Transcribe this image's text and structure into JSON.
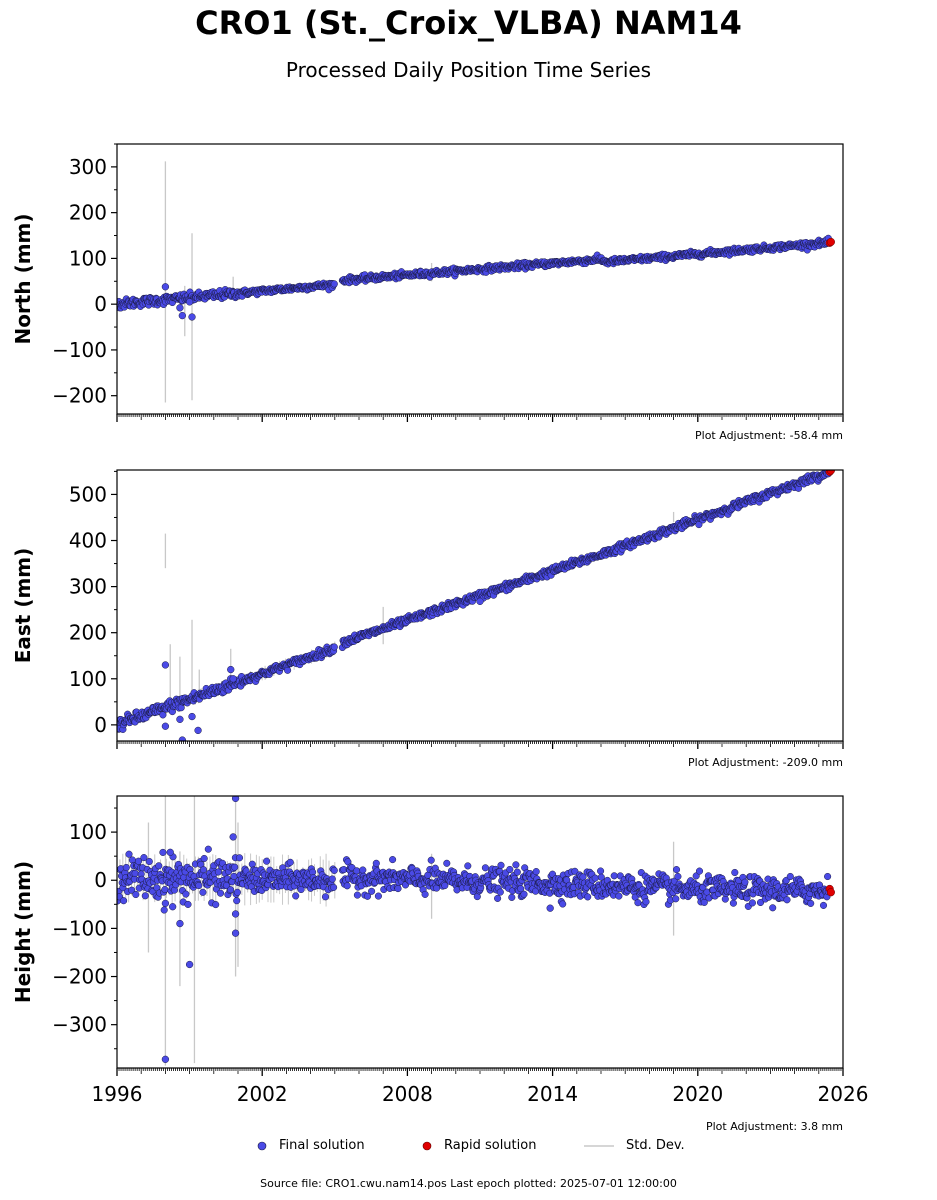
{
  "title": "CRO1 (St._Croix_VLBA) NAM14",
  "subtitle": "Processed Daily Position Time Series",
  "legend": {
    "final": "Final solution",
    "rapid": "Rapid solution",
    "std": "Std. Dev."
  },
  "footer": "Source file: CRO1.cwu.nam14.pos  Last epoch plotted: 2025-07-01 12:00:00",
  "colors": {
    "final": "#4a4ae6",
    "rapid": "#e00000",
    "std": "#c8c8c8",
    "edge": "#1a1a40"
  },
  "chart_data": [
    {
      "type": "scatter",
      "ylabel": "North (mm)",
      "adjustment": "Plot Adjustment: -58.4 mm",
      "xlim": [
        1996,
        2026
      ],
      "ylim": [
        -240,
        350
      ],
      "yticks": [
        -200,
        -100,
        0,
        100,
        200,
        300
      ],
      "ytick_labels": [
        "−200",
        "−100",
        "0",
        "100",
        "200",
        "300"
      ],
      "trend": [
        [
          1996.0,
          0
        ],
        [
          2005.0,
          43
        ],
        [
          2005.3,
          52
        ],
        [
          2016.0,
          98
        ],
        [
          2016.2,
          92
        ],
        [
          2025.5,
          135
        ]
      ],
      "noise": 3,
      "gap": [
        2005.0,
        2005.3
      ],
      "outliers": [
        [
          1998.0,
          38
        ],
        [
          1998.6,
          -8
        ],
        [
          1998.7,
          -25
        ],
        [
          1999.1,
          -28
        ],
        [
          1999.0,
          5
        ]
      ],
      "errorbars": [
        [
          1998.0,
          -215,
          312
        ],
        [
          1999.1,
          -210,
          155
        ],
        [
          1998.8,
          -70,
          40
        ],
        [
          2000.8,
          20,
          60
        ],
        [
          2009.0,
          50,
          90
        ]
      ],
      "rapid": [
        [
          2025.45,
          134
        ],
        [
          2025.5,
          136
        ]
      ],
      "xticks": [
        1996,
        2002,
        2008,
        2014,
        2020,
        2026
      ],
      "xtick_labels": []
    },
    {
      "type": "scatter",
      "ylabel": "East (mm)",
      "adjustment": "Plot Adjustment: -209.0 mm",
      "xlim": [
        1996,
        2026
      ],
      "ylim": [
        -35,
        553
      ],
      "yticks": [
        0,
        100,
        200,
        300,
        400,
        500
      ],
      "ytick_labels": [
        "0",
        "100",
        "200",
        "300",
        "400",
        "500"
      ],
      "trend": [
        [
          1996.0,
          0
        ],
        [
          2005.0,
          166
        ],
        [
          2005.3,
          178
        ],
        [
          2016.0,
          370
        ],
        [
          2025.5,
          550
        ]
      ],
      "noise": 4,
      "gap": [
        2005.0,
        2005.3
      ],
      "outliers": [
        [
          1998.0,
          130
        ],
        [
          1998.0,
          -3
        ],
        [
          1998.6,
          12
        ],
        [
          1999.1,
          18
        ],
        [
          1999.35,
          -12
        ],
        [
          1998.7,
          -33
        ],
        [
          2000.7,
          120
        ],
        [
          2000.8,
          100
        ],
        [
          2011.0,
          268
        ]
      ],
      "errorbars": [
        [
          1998.0,
          340,
          415
        ],
        [
          1998.2,
          60,
          175
        ],
        [
          1998.6,
          35,
          148
        ],
        [
          1999.1,
          55,
          228
        ],
        [
          2000.7,
          85,
          165
        ],
        [
          2007.0,
          175,
          256
        ],
        [
          1999.4,
          50,
          120
        ],
        [
          2019.0,
          440,
          462
        ]
      ],
      "rapid": [
        [
          2025.45,
          549
        ],
        [
          2025.5,
          552
        ]
      ],
      "xticks": [
        1996,
        2002,
        2008,
        2014,
        2020,
        2026
      ],
      "xtick_labels": []
    },
    {
      "type": "scatter",
      "ylabel": "Height (mm)",
      "adjustment": "Plot Adjustment: 3.8 mm",
      "xlim": [
        1996,
        2026
      ],
      "ylim": [
        -390,
        175
      ],
      "yticks": [
        -300,
        -200,
        -100,
        0,
        100
      ],
      "ytick_labels": [
        "−300",
        "−200",
        "−100",
        "0",
        "100"
      ],
      "trend": [
        [
          1996.0,
          5
        ],
        [
          2005.0,
          0
        ],
        [
          2005.3,
          5
        ],
        [
          2015.0,
          -8
        ],
        [
          2020.0,
          -20
        ],
        [
          2025.5,
          -22
        ]
      ],
      "noise": 14,
      "gap": [
        2005.0,
        2005.3
      ],
      "outliers": [
        [
          1998.0,
          -372
        ],
        [
          1998.0,
          -48
        ],
        [
          1998.3,
          -55
        ],
        [
          1998.6,
          -90
        ],
        [
          1999.0,
          -175
        ],
        [
          2000.9,
          -110
        ],
        [
          2000.9,
          170
        ],
        [
          2000.8,
          90
        ],
        [
          1998.2,
          58
        ],
        [
          2000.9,
          -70
        ],
        [
          2013.9,
          -58
        ]
      ],
      "errorbars": [
        [
          1998.0,
          -385,
          175
        ],
        [
          1998.6,
          -220,
          60
        ],
        [
          1999.2,
          -380,
          175
        ],
        [
          2000.9,
          -200,
          175
        ],
        [
          2009.0,
          -80,
          55
        ],
        [
          2019.0,
          -115,
          80
        ],
        [
          1997.3,
          -150,
          120
        ],
        [
          2001.0,
          -180,
          120
        ]
      ],
      "rapid": [
        [
          2025.45,
          -18
        ],
        [
          2025.5,
          -25
        ]
      ],
      "xticks": [
        1996,
        2002,
        2008,
        2014,
        2020,
        2026
      ],
      "xtick_labels": [
        "1996",
        "2002",
        "2008",
        "2014",
        "2020",
        "2026"
      ]
    }
  ]
}
